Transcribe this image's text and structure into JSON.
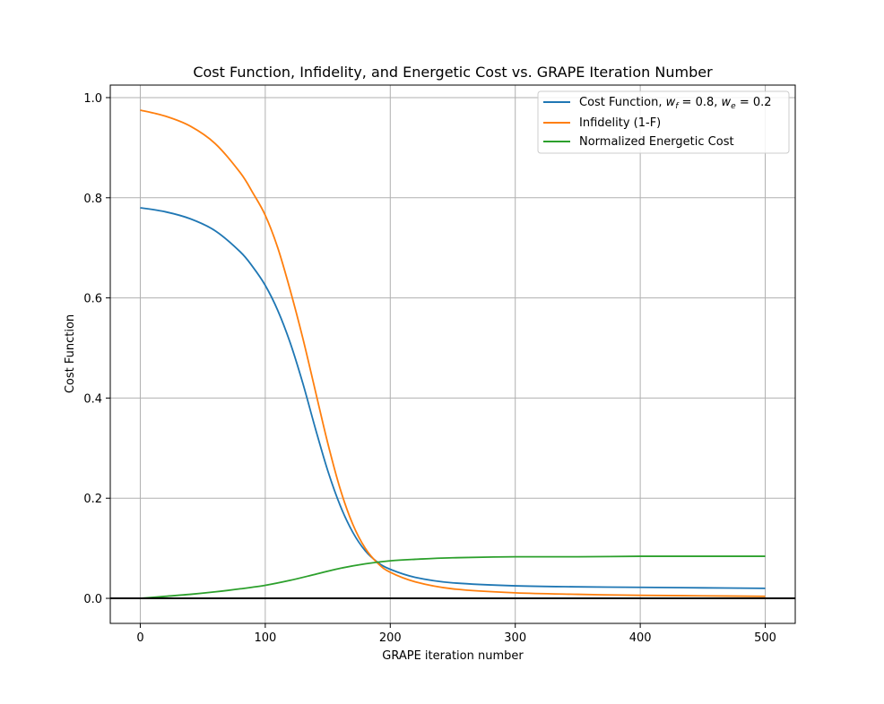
{
  "chart_data": {
    "type": "line",
    "title": "Cost Function, Infidelity, and Energetic Cost vs. GRAPE Iteration Number",
    "xlabel": "GRAPE iteration number",
    "ylabel": "Cost Function",
    "xlim": [
      -24,
      524
    ],
    "ylim": [
      -0.05,
      1.025
    ],
    "xticks": [
      0,
      100,
      200,
      300,
      400,
      500
    ],
    "yticks": [
      0.0,
      0.2,
      0.4,
      0.6,
      0.8,
      1.0
    ],
    "xtick_labels": [
      "0",
      "100",
      "200",
      "300",
      "400",
      "500"
    ],
    "ytick_labels": [
      "0.0",
      "0.2",
      "0.4",
      "0.6",
      "0.8",
      "1.0"
    ],
    "grid": true,
    "legend_position": "top-right",
    "zero_line": true,
    "legend": {
      "cost_prefix": "Cost Function, ",
      "wf_symbol": "w",
      "wf_sub": "f",
      "wf_value": " = 0.8, ",
      "we_symbol": "w",
      "we_sub": "e",
      "we_value": " = 0.2"
    },
    "series": [
      {
        "name": "Cost Function, w_f = 0.8, w_e = 0.2",
        "color": "#1f77b4",
        "x": [
          0,
          20,
          40,
          60,
          80,
          90,
          100,
          110,
          120,
          130,
          140,
          150,
          160,
          170,
          180,
          190,
          200,
          220,
          250,
          300,
          350,
          400,
          450,
          500
        ],
        "y": [
          0.78,
          0.772,
          0.758,
          0.734,
          0.692,
          0.662,
          0.625,
          0.575,
          0.51,
          0.43,
          0.34,
          0.255,
          0.185,
          0.132,
          0.095,
          0.072,
          0.058,
          0.042,
          0.031,
          0.025,
          0.023,
          0.022,
          0.021,
          0.02
        ]
      },
      {
        "name": "Infidelity (1-F)",
        "color": "#ff7f0e",
        "x": [
          0,
          20,
          40,
          60,
          80,
          90,
          100,
          110,
          120,
          130,
          140,
          150,
          160,
          170,
          180,
          190,
          200,
          220,
          250,
          300,
          350,
          400,
          450,
          500
        ],
        "y": [
          0.975,
          0.963,
          0.943,
          0.908,
          0.85,
          0.81,
          0.765,
          0.7,
          0.615,
          0.52,
          0.415,
          0.31,
          0.218,
          0.148,
          0.1,
          0.07,
          0.052,
          0.033,
          0.019,
          0.011,
          0.008,
          0.006,
          0.005,
          0.004
        ]
      },
      {
        "name": "Normalized Energetic Cost",
        "color": "#2ca02c",
        "x": [
          0,
          20,
          40,
          60,
          80,
          100,
          120,
          140,
          160,
          180,
          200,
          220,
          250,
          300,
          350,
          400,
          450,
          500
        ],
        "y": [
          0.0,
          0.004,
          0.008,
          0.013,
          0.019,
          0.026,
          0.036,
          0.048,
          0.06,
          0.069,
          0.075,
          0.078,
          0.081,
          0.083,
          0.083,
          0.084,
          0.084,
          0.084
        ]
      }
    ]
  }
}
